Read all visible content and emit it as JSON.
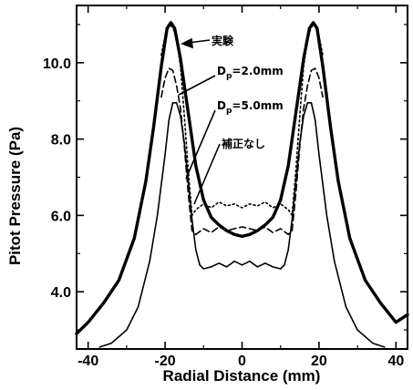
{
  "chart_data": {
    "type": "line",
    "xlabel": "Radial Distance (mm)",
    "ylabel": "Pitot Pressure (Pa)",
    "xlim": [
      -43,
      43
    ],
    "ylim": [
      2.5,
      11.5
    ],
    "xticks": [
      -40,
      -20,
      0,
      20,
      40
    ],
    "xtick_labels": [
      "-40",
      "-20",
      "0",
      "20",
      "40"
    ],
    "yticks": [
      4.0,
      6.0,
      8.0,
      10.0
    ],
    "ytick_labels": [
      "4.0",
      "6.0",
      "8.0",
      "10.0"
    ],
    "grid": false,
    "series": [
      {
        "name": "実験",
        "style": "thick-solid",
        "x": [
          -43,
          -40,
          -36,
          -32,
          -28,
          -25,
          -23,
          -21,
          -19.5,
          -18.5,
          -17.5,
          -16,
          -14,
          -12,
          -10,
          -8,
          -6,
          -4,
          -2,
          0,
          2,
          4,
          6,
          8,
          10,
          12,
          14,
          16,
          17.5,
          18.5,
          19.5,
          21,
          23,
          25,
          28,
          32,
          36,
          40,
          43
        ],
        "y": [
          2.9,
          3.2,
          3.7,
          4.3,
          5.4,
          6.9,
          8.3,
          9.9,
          10.9,
          11.05,
          10.9,
          10.1,
          8.7,
          7.3,
          6.4,
          5.95,
          5.75,
          5.6,
          5.5,
          5.45,
          5.5,
          5.6,
          5.75,
          5.95,
          6.4,
          7.3,
          8.7,
          10.1,
          10.9,
          11.05,
          10.9,
          9.9,
          8.3,
          6.9,
          5.4,
          4.3,
          3.7,
          3.2,
          3.4
        ]
      },
      {
        "name": "Dp=2.0mm",
        "style": "dotted",
        "x": [
          -21,
          -20,
          -19,
          -18,
          -17,
          -16,
          -15,
          -14,
          -13,
          -12,
          -10,
          -8,
          -6,
          -4,
          -2,
          0,
          2,
          4,
          6,
          8,
          10,
          12,
          13,
          14,
          15,
          16,
          17,
          18,
          19,
          20,
          21
        ],
        "y": [
          10.2,
          10.7,
          10.95,
          10.95,
          10.6,
          9.9,
          8.6,
          7.2,
          6.0,
          6.15,
          6.3,
          6.2,
          6.35,
          6.25,
          6.3,
          6.2,
          6.3,
          6.25,
          6.35,
          6.2,
          6.3,
          6.15,
          6.0,
          7.2,
          8.6,
          9.9,
          10.6,
          10.95,
          10.95,
          10.7,
          10.2
        ]
      },
      {
        "name": "Dp=5.0mm",
        "style": "dashed",
        "x": [
          -21,
          -20,
          -19,
          -18,
          -17,
          -16,
          -15,
          -14,
          -13,
          -12,
          -10,
          -8,
          -6,
          -4,
          -2,
          0,
          2,
          4,
          6,
          8,
          10,
          12,
          13,
          14,
          15,
          16,
          17,
          18,
          19,
          20,
          21
        ],
        "y": [
          9.1,
          9.6,
          9.85,
          9.8,
          9.4,
          8.8,
          7.8,
          6.6,
          5.6,
          5.5,
          5.65,
          5.55,
          5.7,
          5.6,
          5.65,
          5.7,
          5.65,
          5.6,
          5.7,
          5.55,
          5.65,
          5.5,
          5.6,
          6.6,
          7.8,
          8.8,
          9.4,
          9.8,
          9.85,
          9.6,
          9.1
        ]
      },
      {
        "name": "補正なし",
        "style": "thin-solid",
        "x": [
          -37,
          -34,
          -30,
          -27,
          -24,
          -22,
          -20,
          -19,
          -18,
          -17,
          -16,
          -15,
          -14,
          -13,
          -12,
          -11,
          -10,
          -8,
          -6,
          -4,
          -2,
          0,
          2,
          4,
          6,
          8,
          10,
          11,
          12,
          13,
          14,
          15,
          16,
          17,
          18,
          19,
          20,
          22,
          24,
          27,
          30,
          34,
          37
        ],
        "y": [
          2.55,
          2.65,
          3.0,
          3.6,
          4.8,
          6.0,
          7.6,
          8.5,
          8.95,
          8.95,
          8.6,
          7.9,
          6.9,
          5.9,
          5.1,
          4.7,
          4.6,
          4.65,
          4.75,
          4.65,
          4.8,
          4.7,
          4.8,
          4.65,
          4.75,
          4.65,
          4.6,
          4.7,
          5.1,
          5.9,
          6.9,
          7.9,
          8.6,
          8.95,
          8.95,
          8.5,
          7.6,
          6.0,
          4.8,
          3.6,
          3.0,
          2.65,
          2.55
        ]
      }
    ],
    "annotations": [
      {
        "text": "実験",
        "pointer": "arrow to left peak of 実験 curve"
      },
      {
        "text": "Dp=2.0mm",
        "pointer": "to Dp=2.0mm curve"
      },
      {
        "text": "Dp=5.0mm",
        "pointer": "to Dp=5.0mm curve"
      },
      {
        "text": "補正なし",
        "pointer": "to 補正なし curve"
      }
    ]
  },
  "labels": {
    "anno_jikken": "実験",
    "anno_dp2_prefix": "D",
    "anno_dp2_sub": "p",
    "anno_dp2_rest": "=2.0mm",
    "anno_dp5_prefix": "D",
    "anno_dp5_sub": "p",
    "anno_dp5_rest": "=5.0mm",
    "anno_hosei": "補正なし"
  }
}
